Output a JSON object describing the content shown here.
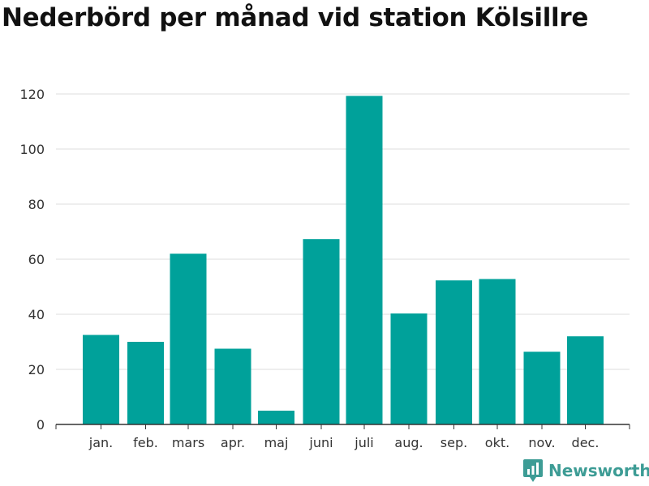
{
  "chart_data": {
    "type": "bar",
    "title": "Nederbörd per månad vid station Kölsillre",
    "xlabel": "",
    "ylabel": "",
    "categories": [
      "jan.",
      "feb.",
      "mars",
      "apr.",
      "maj",
      "juni",
      "juli",
      "aug.",
      "sep.",
      "okt.",
      "nov.",
      "dec."
    ],
    "values": [
      32.5,
      30,
      62,
      27.5,
      5,
      67.3,
      119.3,
      40.3,
      52.3,
      52.8,
      26.4,
      32
    ],
    "ylim": [
      0,
      120
    ],
    "yticks": [
      0,
      20,
      40,
      60,
      80,
      100,
      120
    ],
    "grid": true,
    "bar_color": "#00a19a",
    "grid_color": "#dddddd",
    "axis_color": "#333333"
  },
  "brand": {
    "name": "Newsworthy",
    "icon": "newsworthy-logo-icon",
    "color": "#3d9c95"
  }
}
